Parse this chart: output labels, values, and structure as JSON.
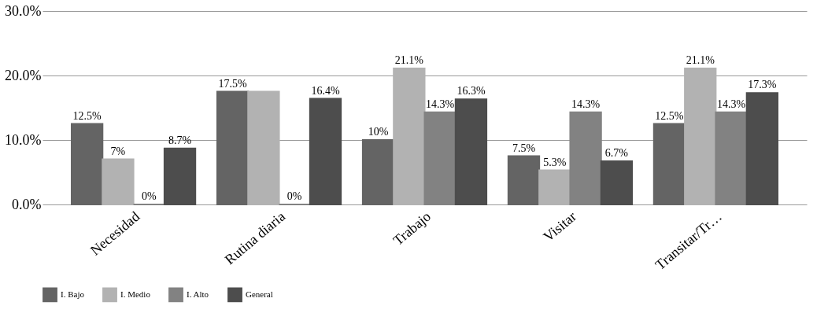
{
  "chart_data": {
    "type": "bar",
    "categories": [
      "Necesidad",
      "Rutina diaria",
      "Trabajo",
      "Visitar",
      "Transitar/Tr…"
    ],
    "series": [
      {
        "name": "I. Bajo",
        "color": "#646464",
        "values": [
          12.5,
          17.5,
          10,
          7.5,
          12.5
        ],
        "value_labels": [
          "12.5%",
          "17.5%",
          "10%",
          "7.5%",
          "12.5%"
        ]
      },
      {
        "name": "I. Medio",
        "color": "#b2b2b2",
        "values": [
          7,
          17.5,
          21.1,
          5.3,
          21.1
        ],
        "value_labels": [
          "7%",
          null,
          "21.1%",
          "5.3%",
          "21.1%"
        ]
      },
      {
        "name": "I. Alto",
        "color": "#828282",
        "values": [
          0,
          0,
          14.3,
          14.3,
          14.3
        ],
        "value_labels": [
          "0%",
          "0%",
          "14.3%",
          "14.3%",
          "14.3%"
        ]
      },
      {
        "name": "General",
        "color": "#4d4d4d",
        "values": [
          8.7,
          16.4,
          16.3,
          6.7,
          17.3
        ],
        "value_labels": [
          "8.7%",
          "16.4%",
          "16.3%",
          "6.7%",
          "17.3%"
        ]
      }
    ],
    "ylim": [
      0,
      30
    ],
    "yticks": [
      {
        "value": 0,
        "label": "0.0%"
      },
      {
        "value": 10,
        "label": "10.0%"
      },
      {
        "value": 20,
        "label": "20.0%"
      },
      {
        "value": 30,
        "label": "30.0%"
      }
    ],
    "grid": "y",
    "legend": "bottom"
  }
}
